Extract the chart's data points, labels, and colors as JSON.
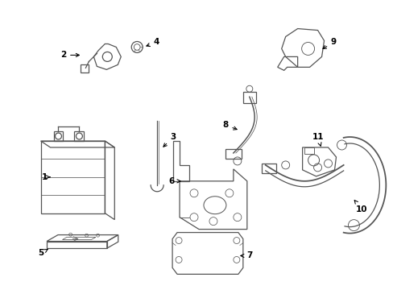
{
  "background_color": "#ffffff",
  "line_color": "#555555",
  "label_color": "#000000",
  "figsize": [
    4.89,
    3.6
  ],
  "dpi": 100
}
